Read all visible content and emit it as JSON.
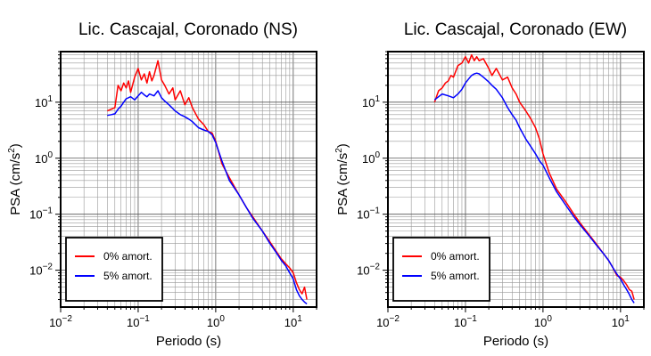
{
  "chart_data": [
    {
      "type": "line",
      "title": "Lic. Cascajal, Coronado (NS)",
      "xlabel": "Periodo (s)",
      "ylabel_main": "PSA (cm/s",
      "ylabel_sup": "2",
      "ylabel_end": ")",
      "x_scale": "log",
      "y_scale": "log",
      "xlim": [
        0.01,
        20
      ],
      "ylim": [
        0.0022,
        80
      ],
      "grid": true,
      "legend_position": "bottom-left",
      "x_ticks": [
        {
          "value": 0.01,
          "base": "10",
          "exp": "−2"
        },
        {
          "value": 0.1,
          "base": "10",
          "exp": "−1"
        },
        {
          "value": 1,
          "base": "10",
          "exp": "0"
        },
        {
          "value": 10,
          "base": "10",
          "exp": "1"
        }
      ],
      "y_ticks": [
        {
          "value": 0.01,
          "base": "10",
          "exp": "−2"
        },
        {
          "value": 0.1,
          "base": "10",
          "exp": "−1"
        },
        {
          "value": 1,
          "base": "10",
          "exp": "0"
        },
        {
          "value": 10,
          "base": "10",
          "exp": "1"
        }
      ],
      "series": [
        {
          "name": "0% amort.",
          "color": "#ff0000",
          "points": [
            [
              0.04,
              7
            ],
            [
              0.045,
              7.5
            ],
            [
              0.05,
              8
            ],
            [
              0.055,
              20
            ],
            [
              0.06,
              16
            ],
            [
              0.065,
              22
            ],
            [
              0.07,
              18
            ],
            [
              0.075,
              24
            ],
            [
              0.08,
              15
            ],
            [
              0.09,
              28
            ],
            [
              0.1,
              40
            ],
            [
              0.11,
              25
            ],
            [
              0.12,
              32
            ],
            [
              0.13,
              22
            ],
            [
              0.14,
              35
            ],
            [
              0.15,
              24
            ],
            [
              0.16,
              30
            ],
            [
              0.18,
              55
            ],
            [
              0.2,
              25
            ],
            [
              0.22,
              20
            ],
            [
              0.25,
              14
            ],
            [
              0.28,
              18
            ],
            [
              0.3,
              11
            ],
            [
              0.35,
              16
            ],
            [
              0.4,
              9
            ],
            [
              0.45,
              12
            ],
            [
              0.5,
              8
            ],
            [
              0.6,
              5
            ],
            [
              0.7,
              4
            ],
            [
              0.8,
              3
            ],
            [
              0.9,
              2.8
            ],
            [
              1,
              2
            ],
            [
              1.2,
              0.8
            ],
            [
              1.5,
              0.45
            ],
            [
              2,
              0.22
            ],
            [
              2.5,
              0.13
            ],
            [
              3,
              0.09
            ],
            [
              4,
              0.05
            ],
            [
              5,
              0.032
            ],
            [
              6,
              0.022
            ],
            [
              7,
              0.016
            ],
            [
              8,
              0.013
            ],
            [
              9,
              0.011
            ],
            [
              10,
              0.009
            ],
            [
              11,
              0.006
            ],
            [
              12,
              0.0045
            ],
            [
              13,
              0.0038
            ],
            [
              14,
              0.005
            ],
            [
              15,
              0.003
            ]
          ]
        },
        {
          "name": "5% amort.",
          "color": "#0000ff",
          "points": [
            [
              0.04,
              5.8
            ],
            [
              0.045,
              6
            ],
            [
              0.05,
              6.2
            ],
            [
              0.055,
              7.5
            ],
            [
              0.06,
              8.5
            ],
            [
              0.065,
              10
            ],
            [
              0.07,
              11.5
            ],
            [
              0.08,
              12.5
            ],
            [
              0.09,
              11
            ],
            [
              0.1,
              13
            ],
            [
              0.11,
              15
            ],
            [
              0.12,
              13.5
            ],
            [
              0.13,
              12.5
            ],
            [
              0.14,
              14
            ],
            [
              0.16,
              13
            ],
            [
              0.18,
              16
            ],
            [
              0.2,
              12
            ],
            [
              0.22,
              10.5
            ],
            [
              0.25,
              9
            ],
            [
              0.3,
              7
            ],
            [
              0.35,
              6
            ],
            [
              0.4,
              5.5
            ],
            [
              0.45,
              5
            ],
            [
              0.5,
              4.5
            ],
            [
              0.6,
              3.5
            ],
            [
              0.7,
              3.2
            ],
            [
              0.8,
              3
            ],
            [
              0.9,
              2.6
            ],
            [
              1,
              1.9
            ],
            [
              1.2,
              0.9
            ],
            [
              1.5,
              0.4
            ],
            [
              2,
              0.22
            ],
            [
              2.5,
              0.13
            ],
            [
              3,
              0.085
            ],
            [
              4,
              0.05
            ],
            [
              5,
              0.03
            ],
            [
              6,
              0.021
            ],
            [
              7,
              0.015
            ],
            [
              8,
              0.012
            ],
            [
              9,
              0.009
            ],
            [
              10,
              0.007
            ],
            [
              11,
              0.0045
            ],
            [
              12,
              0.0035
            ],
            [
              13,
              0.003
            ],
            [
              14,
              0.0027
            ],
            [
              15,
              0.0025
            ]
          ]
        }
      ]
    },
    {
      "type": "line",
      "title": "Lic. Cascajal, Coronado (EW)",
      "xlabel": "Periodo (s)",
      "ylabel_main": "PSA (cm/s",
      "ylabel_sup": "2",
      "ylabel_end": ")",
      "x_scale": "log",
      "y_scale": "log",
      "xlim": [
        0.01,
        20
      ],
      "ylim": [
        0.0022,
        80
      ],
      "grid": true,
      "legend_position": "bottom-left",
      "x_ticks": [
        {
          "value": 0.01,
          "base": "10",
          "exp": "−2"
        },
        {
          "value": 0.1,
          "base": "10",
          "exp": "−1"
        },
        {
          "value": 1,
          "base": "10",
          "exp": "0"
        },
        {
          "value": 10,
          "base": "10",
          "exp": "1"
        }
      ],
      "y_ticks": [
        {
          "value": 0.01,
          "base": "10",
          "exp": "−2"
        },
        {
          "value": 0.1,
          "base": "10",
          "exp": "−1"
        },
        {
          "value": 1,
          "base": "10",
          "exp": "0"
        },
        {
          "value": 10,
          "base": "10",
          "exp": "1"
        }
      ],
      "series": [
        {
          "name": "0% amort.",
          "color": "#ff0000",
          "points": [
            [
              0.04,
              10
            ],
            [
              0.045,
              16
            ],
            [
              0.05,
              18
            ],
            [
              0.055,
              22
            ],
            [
              0.06,
              24
            ],
            [
              0.065,
              30
            ],
            [
              0.07,
              28
            ],
            [
              0.08,
              45
            ],
            [
              0.09,
              50
            ],
            [
              0.1,
              65
            ],
            [
              0.11,
              50
            ],
            [
              0.12,
              70
            ],
            [
              0.13,
              55
            ],
            [
              0.14,
              65
            ],
            [
              0.15,
              55
            ],
            [
              0.17,
              60
            ],
            [
              0.2,
              40
            ],
            [
              0.22,
              30
            ],
            [
              0.25,
              40
            ],
            [
              0.3,
              25
            ],
            [
              0.35,
              28
            ],
            [
              0.4,
              18
            ],
            [
              0.45,
              14
            ],
            [
              0.5,
              10
            ],
            [
              0.6,
              7
            ],
            [
              0.7,
              5
            ],
            [
              0.8,
              3.5
            ],
            [
              0.9,
              2.2
            ],
            [
              1,
              1.2
            ],
            [
              1.2,
              0.55
            ],
            [
              1.5,
              0.28
            ],
            [
              2,
              0.16
            ],
            [
              2.5,
              0.1
            ],
            [
              3,
              0.07
            ],
            [
              4,
              0.042
            ],
            [
              5,
              0.028
            ],
            [
              6,
              0.02
            ],
            [
              7,
              0.015
            ],
            [
              8,
              0.011
            ],
            [
              9,
              0.008
            ],
            [
              10,
              0.0075
            ],
            [
              11,
              0.0065
            ],
            [
              12,
              0.0055
            ],
            [
              13,
              0.0045
            ],
            [
              14,
              0.0042
            ],
            [
              15,
              0.003
            ]
          ]
        },
        {
          "name": "5% amort.",
          "color": "#0000ff",
          "points": [
            [
              0.04,
              11
            ],
            [
              0.045,
              12.5
            ],
            [
              0.05,
              14
            ],
            [
              0.06,
              13
            ],
            [
              0.07,
              12
            ],
            [
              0.08,
              14
            ],
            [
              0.09,
              17
            ],
            [
              0.1,
              22
            ],
            [
              0.11,
              26
            ],
            [
              0.12,
              30
            ],
            [
              0.13,
              32
            ],
            [
              0.14,
              33
            ],
            [
              0.15,
              32
            ],
            [
              0.17,
              28
            ],
            [
              0.2,
              23
            ],
            [
              0.22,
              20
            ],
            [
              0.25,
              17
            ],
            [
              0.3,
              12
            ],
            [
              0.35,
              8
            ],
            [
              0.4,
              6
            ],
            [
              0.45,
              4.8
            ],
            [
              0.5,
              3.5
            ],
            [
              0.6,
              2.2
            ],
            [
              0.7,
              1.6
            ],
            [
              0.8,
              1.2
            ],
            [
              0.9,
              0.9
            ],
            [
              1,
              0.75
            ],
            [
              1.2,
              0.45
            ],
            [
              1.5,
              0.25
            ],
            [
              2,
              0.14
            ],
            [
              2.5,
              0.09
            ],
            [
              3,
              0.065
            ],
            [
              4,
              0.04
            ],
            [
              5,
              0.027
            ],
            [
              6,
              0.02
            ],
            [
              7,
              0.015
            ],
            [
              8,
              0.011
            ],
            [
              9,
              0.0085
            ],
            [
              10,
              0.007
            ],
            [
              11,
              0.0055
            ],
            [
              12,
              0.0045
            ],
            [
              13,
              0.0037
            ],
            [
              14,
              0.003
            ],
            [
              15,
              0.0026
            ]
          ]
        }
      ]
    }
  ]
}
